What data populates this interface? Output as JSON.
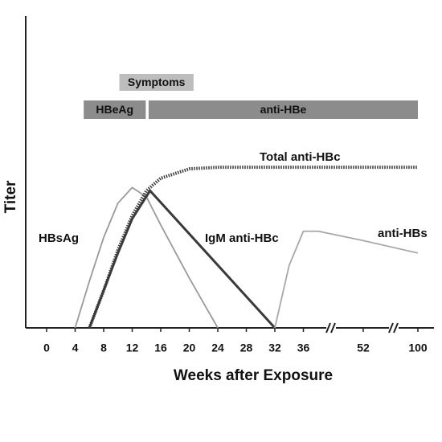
{
  "chart_data": {
    "type": "line",
    "xlabel": "Weeks after Exposure",
    "ylabel": "Titer",
    "xticks": [
      0,
      4,
      8,
      12,
      16,
      20,
      24,
      28,
      32,
      36,
      52,
      100
    ],
    "ylim": [
      0,
      100
    ],
    "series": [
      {
        "name": "HBsAg",
        "color": "#9a9a9a",
        "style": "solid",
        "x": [
          4,
          6,
          8,
          10,
          12,
          14,
          16,
          20,
          24
        ],
        "values": [
          0,
          15,
          29,
          40,
          45,
          42,
          33,
          16,
          0
        ]
      },
      {
        "name": "Total anti-HBc",
        "color": "#3a3a3a",
        "style": "dotted",
        "x": [
          6,
          8,
          10,
          12,
          14,
          16,
          20,
          24,
          100
        ],
        "values": [
          0,
          12,
          25,
          36,
          44,
          48,
          51,
          51.5,
          51.5
        ]
      },
      {
        "name": "IgM anti-HBc",
        "color": "#3a3a3a",
        "style": "solid",
        "x": [
          6,
          8,
          10,
          12,
          14.5,
          32
        ],
        "values": [
          0,
          12,
          24,
          35,
          44,
          0
        ]
      },
      {
        "name": "anti-HBs",
        "color": "#a8a8a8",
        "style": "solid",
        "x": [
          32,
          34,
          36,
          40,
          52,
          100
        ],
        "values": [
          0,
          20,
          31,
          31,
          28,
          24
        ]
      }
    ],
    "bars": [
      {
        "label": "Symptoms",
        "start": 10.2,
        "end": 20.6,
        "color": "#bdbdbd"
      },
      {
        "label": "HBeAg",
        "start": 5.2,
        "end": 13.9,
        "color": "#8c8c8c"
      },
      {
        "label": "anti-HBe",
        "start": 14.3,
        "end": 100,
        "color": "#8c8c8c"
      }
    ]
  }
}
